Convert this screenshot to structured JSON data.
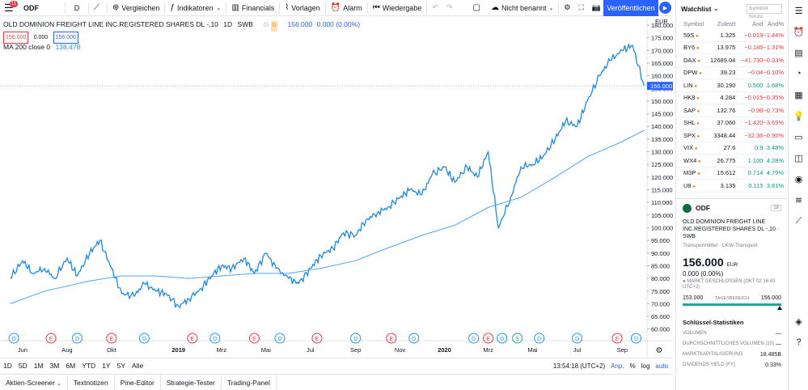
{
  "toolbar": {
    "notif_count": "11",
    "symbol": "ODF",
    "interval": "D",
    "compare": "Vergleichen",
    "indicators": "Indikatoren",
    "financials": "Financials",
    "templates": "Vorlagen",
    "alert": "Alarm",
    "replay": "Wiedergabe",
    "layout_name": "Nicht benannt",
    "publish": "Veröffentlichen"
  },
  "legend": {
    "title": "OLD DOMINION FREIGHT LINE INC.REGISTERED SHARES DL -,10",
    "interval": "1D",
    "exchange": "SWB",
    "badge": "D",
    "price": "156.000",
    "change": "0.000 (0.00%)",
    "bid": "156.000",
    "spread": "0.000",
    "ask": "156.000",
    "ma_label": "MA 200 close 0",
    "ma_value": "138.478"
  },
  "chart_data": {
    "type": "line",
    "currency": "EUR",
    "ylim": [
      58,
      180
    ],
    "y_ticks": [
      60,
      65,
      70,
      75,
      80,
      85,
      90,
      95,
      100,
      105,
      110,
      115,
      120,
      125,
      130,
      135,
      140,
      145,
      150,
      155,
      160,
      165,
      170,
      175,
      180
    ],
    "x_labels": [
      "Jun",
      "Aug",
      "Okt",
      "2019",
      "Mrz",
      "Mai",
      "Jul",
      "Sep",
      "Nov",
      "2020",
      "Mrz",
      "Mai",
      "Jul",
      "Sep"
    ],
    "current_price": "156.000",
    "events": [
      "D",
      "E",
      "D",
      "E",
      "D",
      "E",
      "D",
      "E",
      "D",
      "E",
      "D",
      "E",
      "D",
      "D",
      "E",
      "D",
      "S",
      "D",
      "D",
      "E",
      "D"
    ],
    "series": [
      {
        "name": "ODF",
        "color": "#1e88e5",
        "x": [
          "2018-05-15",
          "2018-06-01",
          "2018-06-15",
          "2018-07-01",
          "2018-07-15",
          "2018-08-01",
          "2018-08-15",
          "2018-09-01",
          "2018-09-15",
          "2018-10-01",
          "2018-10-15",
          "2018-11-01",
          "2018-11-15",
          "2018-12-01",
          "2018-12-15",
          "2019-01-01",
          "2019-01-15",
          "2019-02-01",
          "2019-02-15",
          "2019-03-01",
          "2019-03-15",
          "2019-04-01",
          "2019-04-15",
          "2019-05-01",
          "2019-05-15",
          "2019-06-01",
          "2019-06-15",
          "2019-07-01",
          "2019-07-15",
          "2019-08-01",
          "2019-08-15",
          "2019-09-01",
          "2019-09-15",
          "2019-10-01",
          "2019-10-15",
          "2019-11-01",
          "2019-11-15",
          "2019-12-01",
          "2019-12-15",
          "2020-01-01",
          "2020-01-15",
          "2020-02-01",
          "2020-02-15",
          "2020-03-01",
          "2020-03-15",
          "2020-04-01",
          "2020-04-15",
          "2020-05-01",
          "2020-05-15",
          "2020-06-01",
          "2020-06-15",
          "2020-07-01",
          "2020-07-15",
          "2020-08-01",
          "2020-08-15",
          "2020-09-01",
          "2020-09-15",
          "2020-10-01"
        ],
        "values": [
          80,
          87,
          82,
          84,
          80,
          88,
          81,
          90,
          95,
          84,
          74,
          73,
          78,
          75,
          74,
          69,
          72,
          76,
          81,
          85,
          84,
          88,
          82,
          90,
          84,
          80,
          78,
          84,
          89,
          92,
          98,
          97,
          103,
          106,
          108,
          112,
          115,
          113,
          121,
          124,
          118,
          124,
          120,
          130,
          100,
          112,
          124,
          125,
          128,
          135,
          142,
          140,
          150,
          160,
          166,
          170,
          172,
          156
        ]
      },
      {
        "name": "MA 200 close 0",
        "color": "#4fa3f7",
        "x": [
          "2018-05-15",
          "2018-07-01",
          "2018-09-01",
          "2018-10-15",
          "2018-12-01",
          "2019-01-15",
          "2019-03-01",
          "2019-04-15",
          "2019-06-01",
          "2019-07-15",
          "2019-09-01",
          "2019-10-15",
          "2019-12-01",
          "2020-01-15",
          "2020-03-01",
          "2020-04-15",
          "2020-06-01",
          "2020-07-15",
          "2020-09-01",
          "2020-10-01"
        ],
        "values": [
          70,
          75,
          79,
          81,
          81,
          80,
          81,
          82,
          82,
          84,
          87,
          92,
          97,
          101,
          108,
          112,
          120,
          128,
          134,
          138.5
        ]
      }
    ]
  },
  "timebar": {
    "frames": [
      "1D",
      "5D",
      "1M",
      "3M",
      "6M",
      "YTD",
      "1Y",
      "5Y",
      "Alle"
    ],
    "clock": "13:54:18 (UTC+2)",
    "adj": "Anp.",
    "pct": "%",
    "log": "log",
    "auto": "auto"
  },
  "bottom_tabs": [
    "Aktien-Screener",
    "Textnotizen",
    "Pine-Editor",
    "Strategie-Tester",
    "Trading-Panel"
  ],
  "watchlist": {
    "title": "Watchlist",
    "search_placeholder": "Symbol hinzu",
    "cols": [
      "Symbol",
      "Zuletzt",
      "Änd",
      "Änd%"
    ],
    "rows": [
      {
        "sym": "59S",
        "last": "1.325",
        "chg": "−0.019",
        "pct": "−1.44%",
        "dir": "neg"
      },
      {
        "sym": "BY6",
        "last": "13.975",
        "chg": "−0.185",
        "pct": "−1.31%",
        "dir": "neg"
      },
      {
        "sym": "DAX",
        "last": "12689.04",
        "chg": "−41.730",
        "pct": "−0.33%",
        "dir": "neg"
      },
      {
        "sym": "DPW",
        "last": "39.23",
        "chg": "−0.04",
        "pct": "−0.10%",
        "dir": "neg"
      },
      {
        "sym": "LIN",
        "last": "30.190",
        "chg": "0.500",
        "pct": "1.68%",
        "dir": "pos"
      },
      {
        "sym": "HK8",
        "last": "4.284",
        "chg": "−0.015",
        "pct": "−0.35%",
        "dir": "neg"
      },
      {
        "sym": "SAP",
        "last": "132.76",
        "chg": "−0.98",
        "pct": "−0.73%",
        "dir": "neg"
      },
      {
        "sym": "SHL",
        "last": "37.060",
        "chg": "−1.420",
        "pct": "−3.69%",
        "dir": "neg"
      },
      {
        "sym": "SPX",
        "last": "3348.44",
        "chg": "−32.36",
        "pct": "−0.96%",
        "dir": "neg"
      },
      {
        "sym": "VIX",
        "last": "27.6",
        "chg": "0.9",
        "pct": "3.48%",
        "dir": "pos"
      },
      {
        "sym": "WX4",
        "last": "26.775",
        "chg": "1.100",
        "pct": "4.28%",
        "dir": "pos"
      },
      {
        "sym": "M3P",
        "last": "15.612",
        "chg": "0.714",
        "pct": "4.79%",
        "dir": "pos"
      },
      {
        "sym": "U8",
        "last": "3.135",
        "chg": "0.115",
        "pct": "3.81%",
        "dir": "pos"
      }
    ]
  },
  "detail": {
    "symbol": "ODF",
    "calendar": "18",
    "name": "OLD DOMINION FREIGHT LINE INC.REGISTERED SHARES DL -,10 · SWB",
    "sector": "Transportmittel · LKW-Transport",
    "price": "156.000",
    "currency": "EUR",
    "change": "0.000 (0.00%)",
    "status": "● MARKT GESCHLOSSEN (OKT 02 16:43 UTC+2)",
    "range_low": "153.000",
    "range_label": "TAGESBEREICH",
    "range_high": "156.000",
    "stats_title": "Schlüssel-Statistiken",
    "stats": [
      {
        "k": "VOLUMEN",
        "v": "—"
      },
      {
        "k": "DURCHSCHNITTLICHES VOLUMEN (10)",
        "v": "—"
      },
      {
        "k": "MARKTKAPITALISIERUNG",
        "v": "18.485B"
      },
      {
        "k": "DIVIDENDS YIELD (FY)",
        "v": "0.33%"
      }
    ]
  },
  "side_tools": [
    "list-icon",
    "alarm-clock-icon",
    "data-window-icon",
    "hotlist-icon",
    "calendar-icon",
    "ideas-icon",
    "chat-icon",
    "comments-icon",
    "streams-icon",
    "signal-icon",
    "trend-icon",
    "layers-icon",
    "help-icon"
  ]
}
